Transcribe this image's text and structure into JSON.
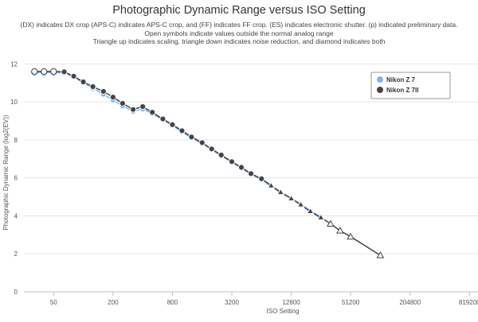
{
  "chart_data": {
    "type": "line",
    "title": "Photographic Dynamic Range versus ISO Setting",
    "subtitle_lines": [
      "(DX) indicates DX crop (APS-C) indicates APS-C crop, and (FF) indicates FF crop. (ES) indicates electronic shutter. (p) indicated preliminary data.",
      "Open symbols indicate values outside the normal analog range",
      "Triangle up indicates scaling, triangle down indicates noise reduction, and diamond indicates both"
    ],
    "xlabel": "ISO Setting",
    "ylabel": "Photographic Dynamic Range (log2(EV))",
    "x_scale": "log2",
    "xlim": [
      25,
      1000000
    ],
    "ylim": [
      0,
      12.6
    ],
    "x_ticks": [
      50,
      200,
      800,
      3200,
      12800,
      51200,
      204800,
      819200
    ],
    "x_tick_labels": [
      "50",
      "200",
      "800",
      "3200",
      "12800",
      "51200",
      "204800",
      "819200"
    ],
    "y_ticks": [
      0,
      2,
      4,
      6,
      8,
      10,
      12
    ],
    "legend_position": "top-right",
    "series": [
      {
        "name": "Nikon Z 7",
        "color": "#7cb5ec",
        "marker": "circle",
        "points": [
          {
            "x": 32,
            "y": 11.55,
            "symbol": "circle-open"
          },
          {
            "x": 40,
            "y": 11.55,
            "symbol": "circle-open"
          },
          {
            "x": 50,
            "y": 11.55,
            "symbol": "circle-open"
          },
          {
            "x": 64,
            "y": 11.52,
            "symbol": "circle"
          },
          {
            "x": 80,
            "y": 11.3,
            "symbol": "circle"
          },
          {
            "x": 100,
            "y": 11.0,
            "symbol": "circle"
          },
          {
            "x": 125,
            "y": 10.72,
            "symbol": "circle"
          },
          {
            "x": 160,
            "y": 10.4,
            "symbol": "circle"
          },
          {
            "x": 200,
            "y": 10.1,
            "symbol": "circle"
          },
          {
            "x": 250,
            "y": 9.78,
            "symbol": "circle"
          },
          {
            "x": 320,
            "y": 9.5,
            "symbol": "circle"
          },
          {
            "x": 400,
            "y": 9.62,
            "symbol": "circle"
          },
          {
            "x": 500,
            "y": 9.38,
            "symbol": "circle"
          },
          {
            "x": 640,
            "y": 9.05,
            "symbol": "circle"
          },
          {
            "x": 800,
            "y": 8.75,
            "symbol": "circle"
          },
          {
            "x": 1000,
            "y": 8.42,
            "symbol": "circle"
          },
          {
            "x": 1250,
            "y": 8.1,
            "symbol": "circle"
          },
          {
            "x": 1600,
            "y": 7.8,
            "symbol": "circle"
          },
          {
            "x": 2000,
            "y": 7.48,
            "symbol": "circle"
          },
          {
            "x": 2500,
            "y": 7.15,
            "symbol": "circle"
          },
          {
            "x": 3200,
            "y": 6.82,
            "symbol": "circle"
          },
          {
            "x": 4000,
            "y": 6.5,
            "symbol": "circle"
          },
          {
            "x": 5000,
            "y": 6.18,
            "symbol": "circle"
          },
          {
            "x": 6400,
            "y": 5.9,
            "symbol": "circle"
          },
          {
            "x": 8000,
            "y": 5.55,
            "symbol": "triangle-up"
          },
          {
            "x": 10000,
            "y": 5.2,
            "symbol": "triangle-up"
          },
          {
            "x": 12800,
            "y": 4.9,
            "symbol": "triangle-up"
          },
          {
            "x": 16000,
            "y": 4.55,
            "symbol": "triangle-up"
          },
          {
            "x": 20000,
            "y": 4.2,
            "symbol": "triangle-up"
          },
          {
            "x": 25600,
            "y": 3.88,
            "symbol": "triangle-up"
          }
        ]
      },
      {
        "name": "Nikon Z 7II",
        "color": "#434348",
        "marker": "circle",
        "points": [
          {
            "x": 32,
            "y": 11.6,
            "symbol": "circle-open"
          },
          {
            "x": 40,
            "y": 11.6,
            "symbol": "circle-open"
          },
          {
            "x": 50,
            "y": 11.6,
            "symbol": "circle-open"
          },
          {
            "x": 64,
            "y": 11.58,
            "symbol": "circle"
          },
          {
            "x": 80,
            "y": 11.35,
            "symbol": "circle"
          },
          {
            "x": 100,
            "y": 11.05,
            "symbol": "circle"
          },
          {
            "x": 125,
            "y": 10.8,
            "symbol": "circle"
          },
          {
            "x": 160,
            "y": 10.55,
            "symbol": "circle"
          },
          {
            "x": 200,
            "y": 10.25,
            "symbol": "circle"
          },
          {
            "x": 250,
            "y": 9.92,
            "symbol": "circle"
          },
          {
            "x": 320,
            "y": 9.6,
            "symbol": "circle"
          },
          {
            "x": 400,
            "y": 9.75,
            "symbol": "circle"
          },
          {
            "x": 500,
            "y": 9.45,
            "symbol": "circle"
          },
          {
            "x": 640,
            "y": 9.1,
            "symbol": "circle"
          },
          {
            "x": 800,
            "y": 8.8,
            "symbol": "circle"
          },
          {
            "x": 1000,
            "y": 8.48,
            "symbol": "circle"
          },
          {
            "x": 1250,
            "y": 8.15,
            "symbol": "circle"
          },
          {
            "x": 1600,
            "y": 7.85,
            "symbol": "circle"
          },
          {
            "x": 2000,
            "y": 7.52,
            "symbol": "circle"
          },
          {
            "x": 2500,
            "y": 7.2,
            "symbol": "circle"
          },
          {
            "x": 3200,
            "y": 6.85,
            "symbol": "circle"
          },
          {
            "x": 4000,
            "y": 6.55,
            "symbol": "circle"
          },
          {
            "x": 5000,
            "y": 6.22,
            "symbol": "circle"
          },
          {
            "x": 6400,
            "y": 5.95,
            "symbol": "circle"
          },
          {
            "x": 8000,
            "y": 5.6,
            "symbol": "triangle-up"
          },
          {
            "x": 10000,
            "y": 5.25,
            "symbol": "triangle-up"
          },
          {
            "x": 12800,
            "y": 4.92,
            "symbol": "triangle-up"
          },
          {
            "x": 16000,
            "y": 4.6,
            "symbol": "triangle-up"
          },
          {
            "x": 20000,
            "y": 4.25,
            "symbol": "triangle-up"
          },
          {
            "x": 25600,
            "y": 3.92,
            "symbol": "triangle-up"
          },
          {
            "x": 32000,
            "y": 3.58,
            "symbol": "triangle-up-open"
          },
          {
            "x": 40000,
            "y": 3.22,
            "symbol": "triangle-up-open"
          },
          {
            "x": 51200,
            "y": 2.9,
            "symbol": "triangle-up-open"
          },
          {
            "x": 102400,
            "y": 1.92,
            "symbol": "triangle-up-open"
          }
        ]
      }
    ]
  }
}
